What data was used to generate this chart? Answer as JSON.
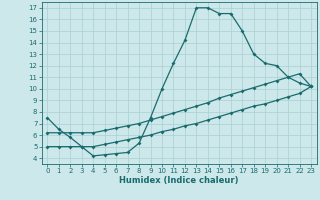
{
  "xlabel": "Humidex (Indice chaleur)",
  "bg_color": "#cce8ea",
  "grid_color": "#aacfd2",
  "line_color": "#1a6b6e",
  "xlim": [
    -0.5,
    23.5
  ],
  "ylim": [
    3.5,
    17.5
  ],
  "xticks": [
    0,
    1,
    2,
    3,
    4,
    5,
    6,
    7,
    8,
    9,
    10,
    11,
    12,
    13,
    14,
    15,
    16,
    17,
    18,
    19,
    20,
    21,
    22,
    23
  ],
  "yticks": [
    4,
    5,
    6,
    7,
    8,
    9,
    10,
    11,
    12,
    13,
    14,
    15,
    16,
    17
  ],
  "line1_x": [
    0,
    1,
    2,
    3,
    4,
    5,
    6,
    7,
    8,
    9,
    10,
    11,
    12,
    13,
    14,
    15,
    16,
    17,
    18,
    19,
    20,
    21,
    22,
    23
  ],
  "line1_y": [
    7.5,
    6.5,
    5.8,
    5.0,
    4.2,
    4.3,
    4.4,
    4.5,
    5.3,
    7.5,
    10.0,
    12.2,
    14.2,
    17.0,
    17.0,
    16.5,
    16.5,
    15.0,
    13.0,
    12.2,
    12.0,
    11.0,
    10.5,
    10.2
  ],
  "line2_x": [
    0,
    1,
    2,
    3,
    4,
    5,
    6,
    7,
    8,
    9,
    10,
    11,
    12,
    13,
    14,
    15,
    16,
    17,
    18,
    19,
    20,
    21,
    22,
    23
  ],
  "line2_y": [
    6.2,
    6.2,
    6.2,
    6.2,
    6.2,
    6.4,
    6.6,
    6.8,
    7.0,
    7.3,
    7.6,
    7.9,
    8.2,
    8.5,
    8.8,
    9.2,
    9.5,
    9.8,
    10.1,
    10.4,
    10.7,
    11.0,
    11.3,
    10.2
  ],
  "line3_x": [
    0,
    1,
    2,
    3,
    4,
    5,
    6,
    7,
    8,
    9,
    10,
    11,
    12,
    13,
    14,
    15,
    16,
    17,
    18,
    19,
    20,
    21,
    22,
    23
  ],
  "line3_y": [
    5.0,
    5.0,
    5.0,
    5.0,
    5.0,
    5.2,
    5.4,
    5.6,
    5.8,
    6.0,
    6.3,
    6.5,
    6.8,
    7.0,
    7.3,
    7.6,
    7.9,
    8.2,
    8.5,
    8.7,
    9.0,
    9.3,
    9.6,
    10.2
  ],
  "xlabel_fontsize": 6.0,
  "tick_fontsize": 5.0,
  "marker_size": 2.0,
  "line_width": 0.9
}
